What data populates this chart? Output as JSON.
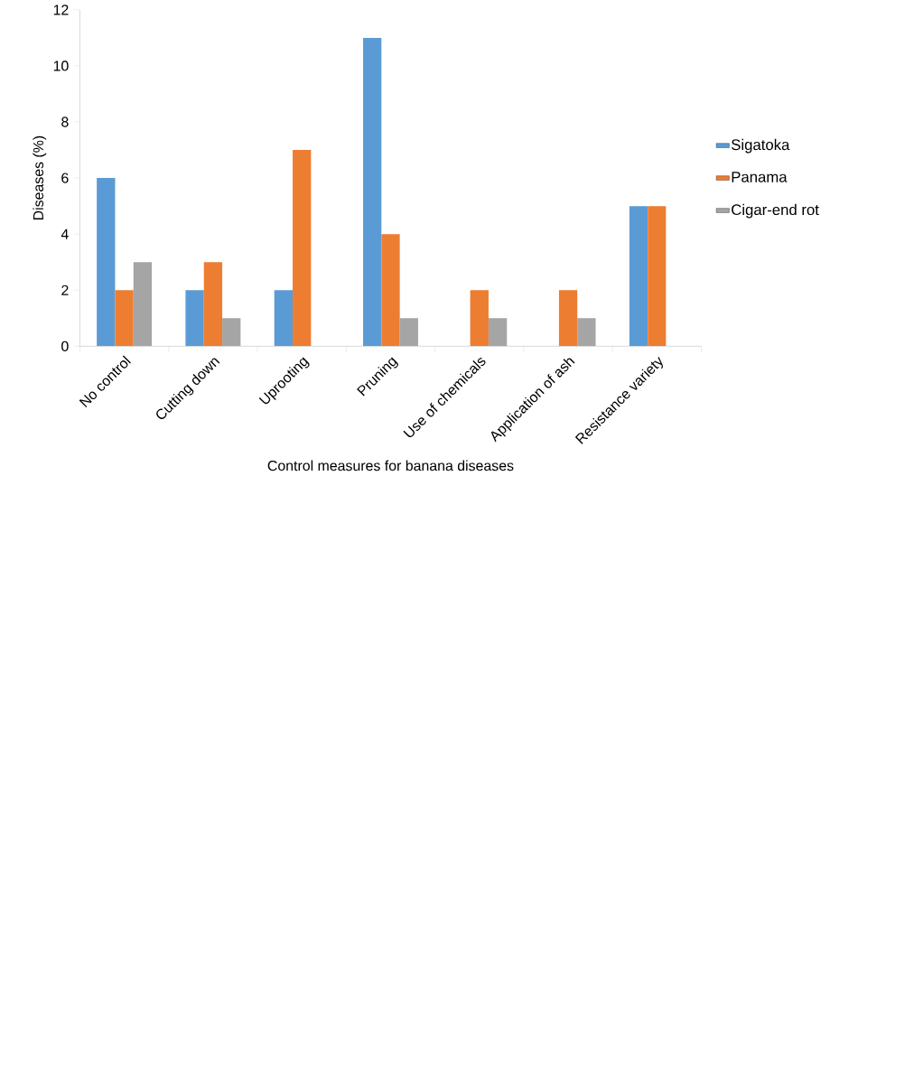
{
  "chart_data": {
    "type": "bar",
    "xlabel": "Control measures for banana diseases",
    "ylabel": "Diseases (%)",
    "categories": [
      "No control",
      "Cutting down",
      "Uprooting",
      "Pruning",
      "Use of chemicals",
      "Application of ash",
      "Resistance variety"
    ],
    "series": [
      {
        "name": "Sigatoka",
        "color": "#5b9bd5",
        "values": [
          6,
          2,
          2,
          11,
          0,
          0,
          5
        ]
      },
      {
        "name": "Panama",
        "color": "#ed7d31",
        "values": [
          2,
          3,
          7,
          4,
          2,
          2,
          5
        ]
      },
      {
        "name": "Cigar-end rot",
        "color": "#a5a5a5",
        "values": [
          3,
          1,
          0,
          1,
          1,
          1,
          0
        ]
      }
    ],
    "ylim": [
      0,
      12
    ],
    "yticks": [
      0,
      2,
      4,
      6,
      8,
      10,
      12
    ],
    "grid": false,
    "legend": "right"
  }
}
